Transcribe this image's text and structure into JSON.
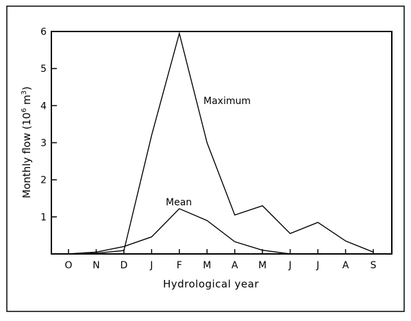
{
  "chart_data": {
    "type": "line",
    "title": "",
    "xlabel": "Hydrological year",
    "ylabel": "Monthly flow (10^6 m^3)",
    "ylabel_parts": {
      "main": "Monthly flow (10",
      "exp1": "6",
      "mid": " m",
      "exp2": "3",
      "end": ")"
    },
    "categories": [
      "O",
      "N",
      "D",
      "J",
      "F",
      "M",
      "A",
      "M",
      "J",
      "J",
      "A",
      "S"
    ],
    "yticks": [
      1,
      2,
      3,
      4,
      5,
      6
    ],
    "ylim": [
      0,
      6
    ],
    "grid": false,
    "series": [
      {
        "name": "Maximum",
        "values": [
          0,
          0.02,
          0.09,
          3.2,
          5.95,
          3.0,
          1.05,
          1.3,
          0.55,
          0.85,
          0.35,
          0.05
        ]
      },
      {
        "name": "Mean",
        "values": [
          0,
          0.05,
          0.2,
          0.46,
          1.22,
          0.9,
          0.33,
          0.1,
          0.0,
          null,
          null,
          null
        ]
      }
    ]
  }
}
